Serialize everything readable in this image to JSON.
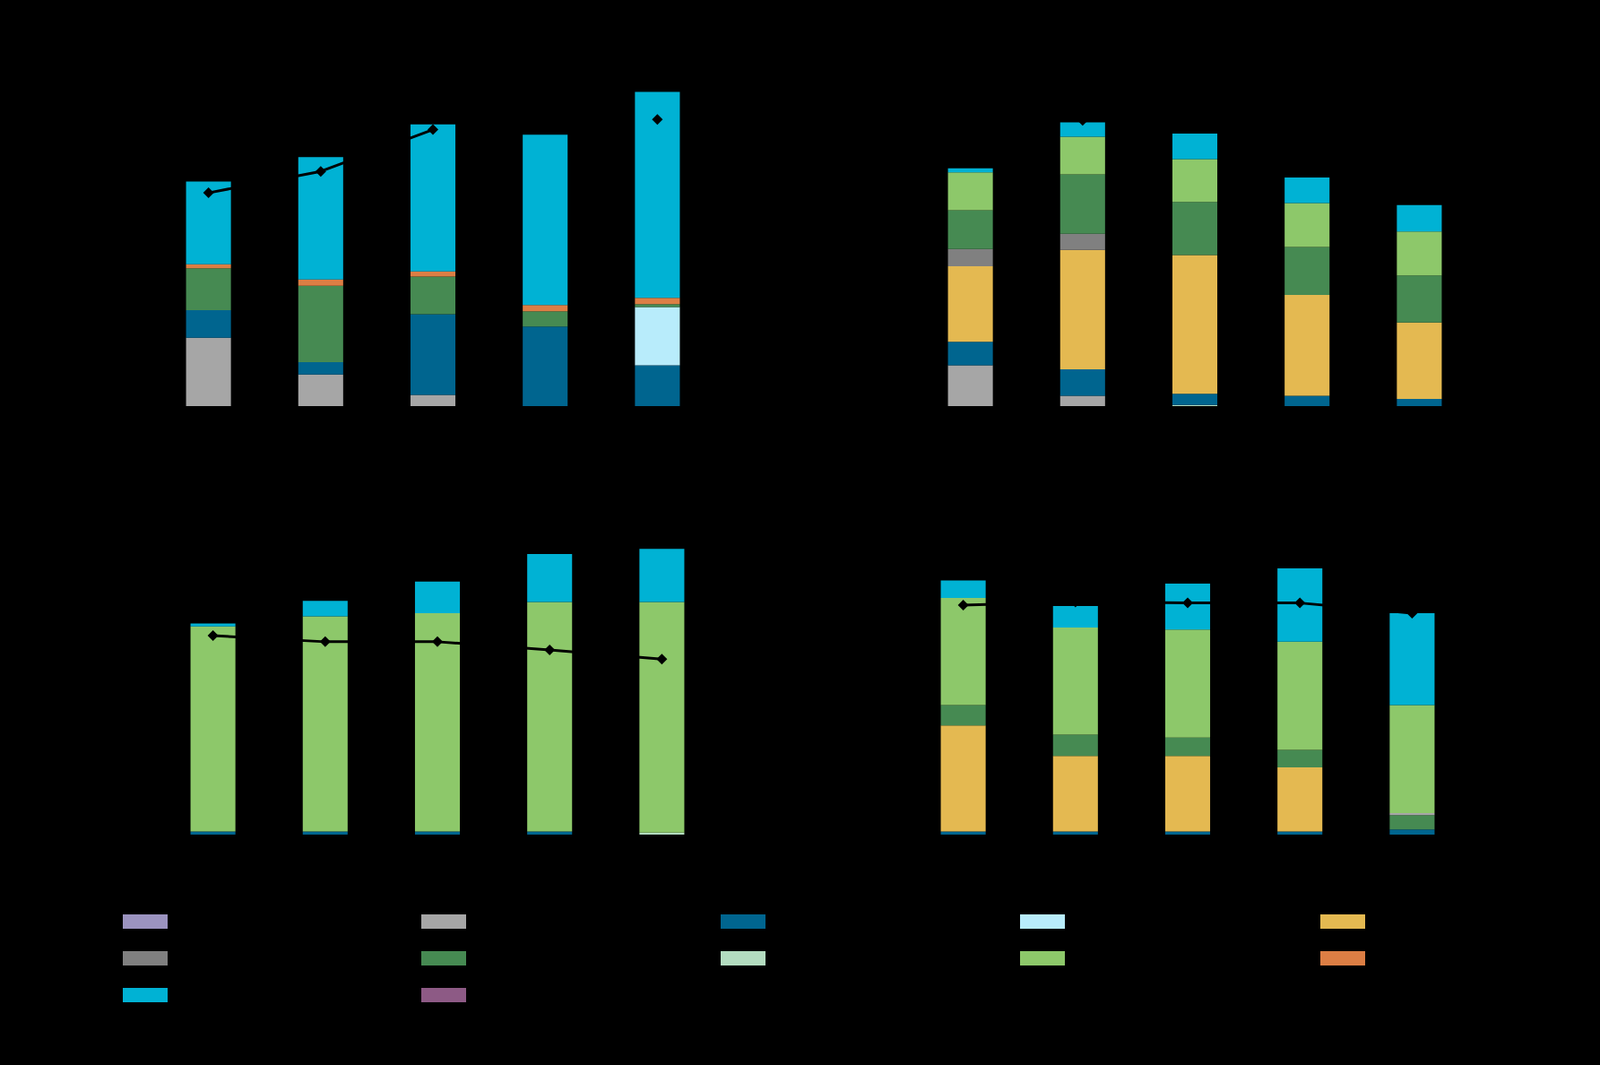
{
  "chart_data": [
    {
      "type": "bar",
      "stacked": true,
      "tick_labels": false,
      "grid": false,
      "categories": [
        null,
        null,
        null,
        null,
        null
      ],
      "ylim": [
        0,
        340
      ],
      "series": [
        {
          "color": "#a6a6a6",
          "values": [
            67,
            31,
            11,
            0,
            0
          ]
        },
        {
          "color": "#00658f",
          "values": [
            27,
            12,
            79,
            78,
            40
          ]
        },
        {
          "color": "#b8ecfb",
          "values": [
            0,
            0,
            0,
            0,
            57
          ]
        },
        {
          "color": "#468a52",
          "values": [
            41,
            75,
            37,
            15,
            3
          ]
        },
        {
          "color": "#dc7e44",
          "values": [
            4,
            6,
            5,
            6,
            6
          ]
        },
        {
          "color": "#00b2d4",
          "values": [
            81,
            120,
            144,
            167,
            202
          ]
        },
        {
          "type": "line",
          "color": "#000000",
          "marker": "diamond",
          "values": [
            209,
            230,
            271,
            null,
            281
          ]
        }
      ]
    },
    {
      "type": "bar",
      "stacked": true,
      "tick_labels": false,
      "grid": false,
      "categories": [
        null,
        null,
        null,
        null,
        null
      ],
      "ylim": [
        0,
        340
      ],
      "series": [
        {
          "color": "#a6a6a6",
          "values": [
            40,
            10,
            0,
            0,
            0
          ]
        },
        {
          "color": "#b3dcc0",
          "values": [
            0,
            0,
            1,
            0,
            0
          ]
        },
        {
          "color": "#00658f",
          "values": [
            23,
            26,
            11,
            10,
            7
          ]
        },
        {
          "color": "#e4b951",
          "values": [
            74,
            117,
            136,
            99,
            75
          ]
        },
        {
          "color": "#808080",
          "values": [
            17,
            16,
            0,
            0,
            0
          ]
        },
        {
          "color": "#468a52",
          "values": [
            38,
            58,
            52,
            47,
            46
          ]
        },
        {
          "color": "#8dc86a",
          "values": [
            37,
            37,
            42,
            43,
            43
          ]
        },
        {
          "color": "#00b2d4",
          "values": [
            4,
            14,
            25,
            25,
            26
          ]
        },
        {
          "type": "line",
          "color": "#000000",
          "marker": "diamond",
          "values": [
            null,
            280,
            null,
            null,
            null
          ]
        }
      ]
    },
    {
      "type": "bar",
      "stacked": true,
      "tick_labels": false,
      "grid": false,
      "categories": [
        null,
        null,
        null,
        null,
        null
      ],
      "ylim": [
        0,
        340
      ],
      "series": [
        {
          "color": "#b3dcc0",
          "values": [
            0,
            0,
            0,
            0,
            2
          ]
        },
        {
          "color": "#00658f",
          "values": [
            3,
            3,
            3,
            3,
            0
          ]
        },
        {
          "color": "#8dc86a",
          "values": [
            201,
            211,
            214,
            225,
            226
          ]
        },
        {
          "color": "#00b2d4",
          "values": [
            3,
            15,
            31,
            47,
            52
          ]
        },
        {
          "type": "line",
          "color": "#000000",
          "marker": "diamond",
          "values": [
            195,
            189,
            189,
            181,
            172
          ]
        }
      ]
    },
    {
      "type": "bar",
      "stacked": true,
      "tick_labels": false,
      "grid": false,
      "categories": [
        null,
        null,
        null,
        null,
        null
      ],
      "ylim": [
        0,
        340
      ],
      "series": [
        {
          "color": "#00658f",
          "values": [
            3,
            3,
            3,
            3,
            5
          ]
        },
        {
          "color": "#e4b951",
          "values": [
            104,
            74,
            74,
            63,
            0
          ]
        },
        {
          "color": "#468a52",
          "values": [
            20,
            21,
            18,
            17,
            14
          ]
        },
        {
          "color": "#a6a6a6",
          "values": [
            0,
            0,
            0,
            0,
            2
          ]
        },
        {
          "color": "#8dc86a",
          "values": [
            105,
            105,
            106,
            106,
            106
          ]
        },
        {
          "color": "#00b2d4",
          "values": [
            17,
            21,
            45,
            72,
            90
          ]
        },
        {
          "type": "line",
          "color": "#000000",
          "marker": "diamond",
          "values": [
            225,
            228,
            227,
            227,
            217
          ]
        }
      ]
    }
  ],
  "legend_colors": [
    "#9b93bf",
    "#a6a6a6",
    "#00658f",
    "#b8ecfb",
    "#e4b951",
    "#808080",
    "#468a52",
    "#b3dcc0",
    "#8dc86a",
    "#dc7e44",
    "#00b2d4",
    "#8d5a85"
  ]
}
